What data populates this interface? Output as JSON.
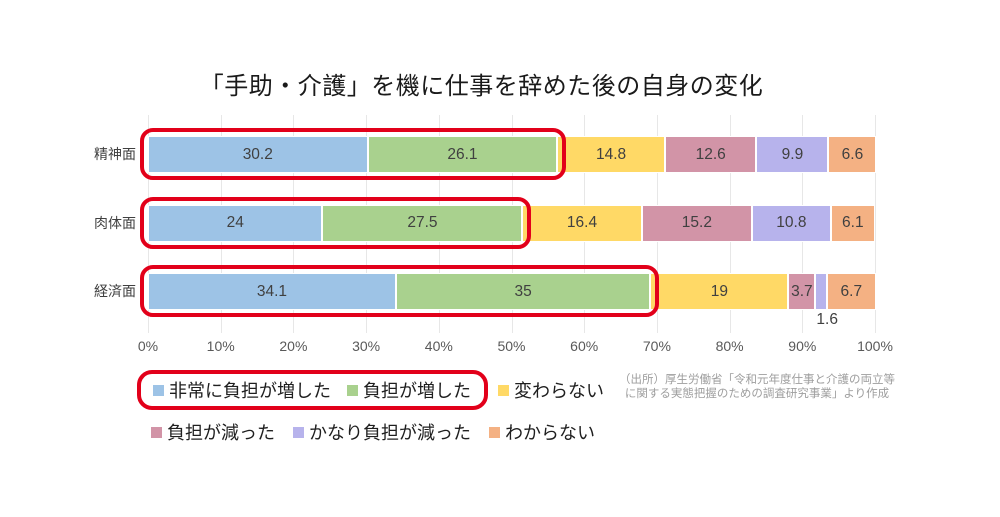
{
  "title": "「手助・介護」を機に仕事を辞めた後の自身の変化",
  "chart_data": {
    "type": "bar",
    "orientation": "horizontal",
    "stacked": true,
    "title": "「手助・介護」を機に仕事を辞めた後の自身の変化",
    "categories": [
      "精神面",
      "肉体面",
      "経済面"
    ],
    "series": [
      {
        "name": "非常に負担が増した",
        "color": "#9dc3e6",
        "values": [
          30.2,
          24,
          34.1
        ]
      },
      {
        "name": "負担が増した",
        "color": "#a9d18e",
        "values": [
          26.1,
          27.5,
          35
        ]
      },
      {
        "name": "変わらない",
        "color": "#ffd966",
        "values": [
          14.8,
          16.4,
          19
        ]
      },
      {
        "name": "負担が減った",
        "color": "#d294a7",
        "values": [
          12.6,
          15.2,
          3.7
        ]
      },
      {
        "name": "かなり負担が減った",
        "color": "#b7b3ec",
        "values": [
          9.9,
          10.8,
          1.6
        ]
      },
      {
        "name": "わからない",
        "color": "#f4b183",
        "values": [
          6.6,
          6.1,
          6.7
        ]
      }
    ],
    "x_axis": {
      "min": 0,
      "max": 100,
      "ticks": [
        "0%",
        "10%",
        "20%",
        "30%",
        "40%",
        "50%",
        "60%",
        "70%",
        "80%",
        "90%",
        "100%"
      ]
    },
    "grid": true,
    "legend_position": "bottom"
  },
  "annotations": {
    "highlight_color": "#e2001a",
    "highlighted_series": [
      "非常に負担が増した",
      "負担が増した"
    ],
    "outside_label": {
      "category": "経済面",
      "series": "かなり負担が減った",
      "text": "1.6"
    }
  },
  "source_note": {
    "line1": "（出所）厚生労働省「令和元年度仕事と介護の両立等",
    "line2": "に関する実態把握のための調査研究事業」より作成"
  }
}
